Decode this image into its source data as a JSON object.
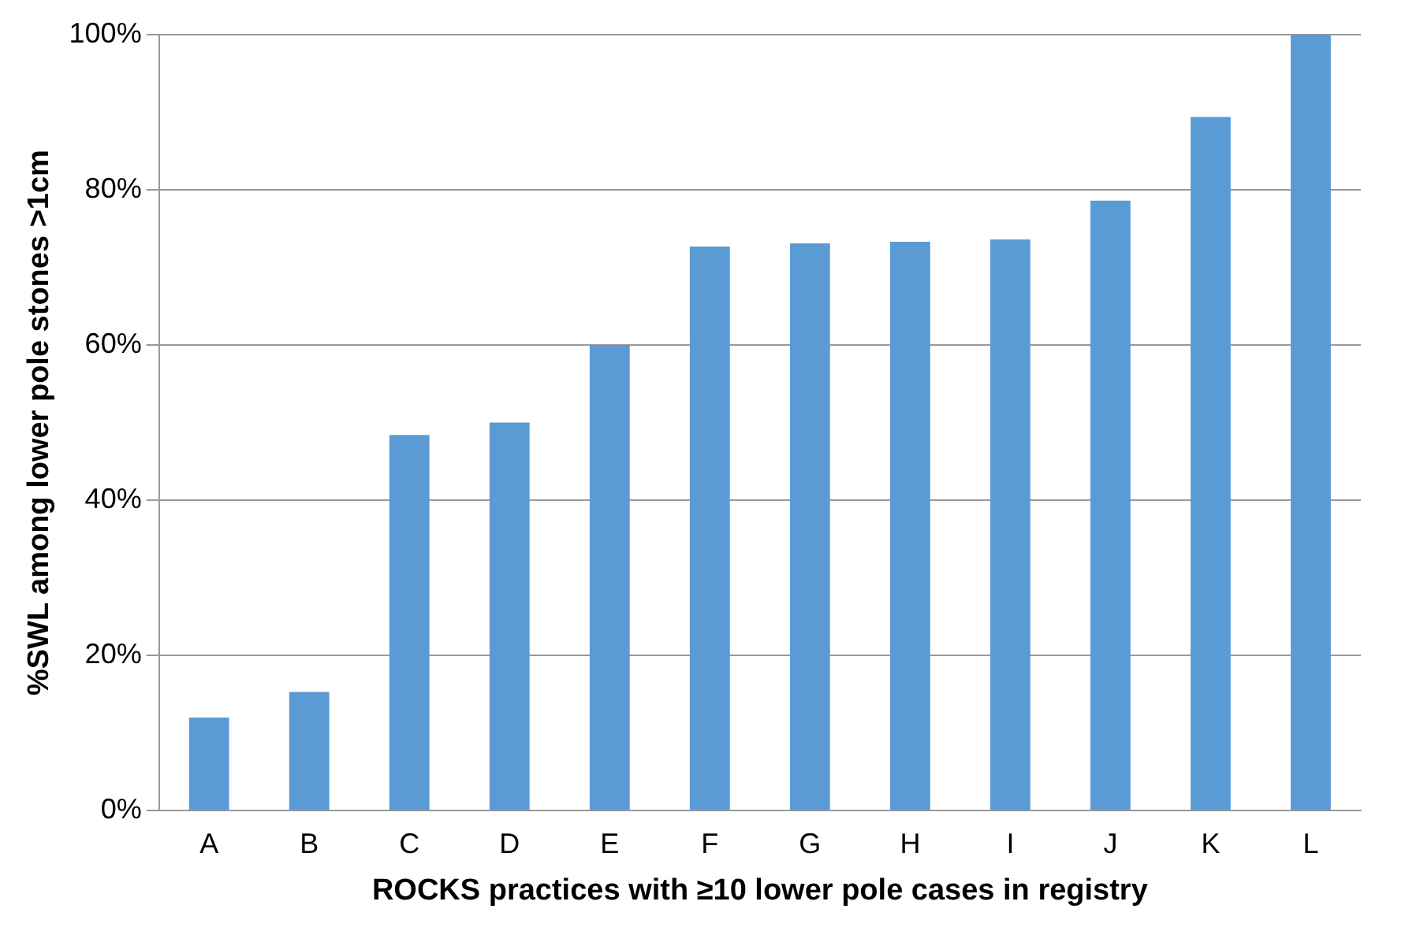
{
  "chart_data": {
    "type": "bar",
    "xlabel": "ROCKS practices with ≥10 lower pole cases in registry",
    "ylabel": "%SWL among lower pole stones >1cm",
    "categories": [
      "A",
      "B",
      "C",
      "D",
      "E",
      "F",
      "G",
      "H",
      "I",
      "J",
      "K",
      "L"
    ],
    "values": [
      12,
      15.3,
      48.4,
      50,
      60,
      72.7,
      73.1,
      73.3,
      73.6,
      78.6,
      89.4,
      100
    ],
    "color": "#5b9bd5",
    "ylim": [
      0,
      100
    ],
    "yticks": [
      {
        "value": 0,
        "label": "0%"
      },
      {
        "value": 20,
        "label": "20%"
      },
      {
        "value": 40,
        "label": "40%"
      },
      {
        "value": 60,
        "label": "60%"
      },
      {
        "value": 80,
        "label": "80%"
      },
      {
        "value": 100,
        "label": "100%"
      }
    ],
    "grid": "y"
  }
}
